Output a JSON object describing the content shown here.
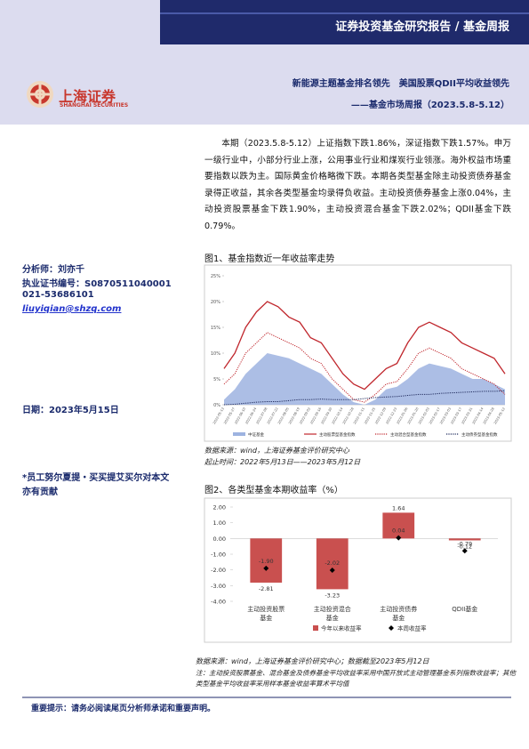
{
  "header": {
    "banner": "证券投资基金研究报告 / 基金周报",
    "logo": "上海证券",
    "logo_en": "SHANGHAI SECURITIES",
    "title": "新能源主题基金排名领先　美国股票QDII平均收益领先",
    "subtitle": "——基金市场周报（2023.5.8-5.12）"
  },
  "sidebar": {
    "analyst": "分析师：刘亦千",
    "cert": "执业证书编号：S0870511040001",
    "phone": "021-53686101",
    "email": "liuyiqian@shzq.com",
    "date": "日期：2023年5月15日",
    "note": "*员工努尔夏提・买买提艾买尔对本文亦有贡献"
  },
  "summary": "本期（2023.5.8-5.12）上证指数下跌1.86%，深证指数下跌1.57%。申万一级行业中，小部分行业上涨，公用事业行业和煤炭行业领涨。海外权益市场重要指数以跌为主。国际黄金价格略微下跌。本期各类型基金除主动投资债券基金录得正收益，其余各类型基金均录得负收益。主动投资债券基金上涨0.04%，主动投资股票基金下跌1.90%，主动投资混合基金下跌2.02%；QDII基金下跌0.79%。",
  "chart_data": [
    {
      "type": "line",
      "title": "图1、基金指数近一年收益率走势",
      "categories": [
        "2022-05-13",
        "2022-05-27",
        "2022-06-10",
        "2022-06-24",
        "2022-07-08",
        "2022-07-22",
        "2022-08-05",
        "2022-08-19",
        "2022-09-02",
        "2022-09-16",
        "2022-09-30",
        "2022-10-14",
        "2022-10-28",
        "2022-11-11",
        "2022-11-25",
        "2022-12-09",
        "2022-12-23",
        "2023-01-06",
        "2023-01-20",
        "2023-02-03",
        "2023-02-17",
        "2023-03-03",
        "2023-03-17",
        "2023-03-31",
        "2023-04-14",
        "2023-04-28",
        "2023-05-12"
      ],
      "series": [
        {
          "name": "中证基金",
          "color": "#9db3e0",
          "style": "area",
          "values": [
            1,
            3,
            6,
            8,
            10,
            9.5,
            9,
            8,
            7,
            6,
            4,
            2,
            0.5,
            0,
            1,
            3,
            3.5,
            5,
            7,
            8,
            7.5,
            7,
            6,
            5,
            5,
            4,
            3
          ]
        },
        {
          "name": "主动股票型基金指数",
          "color": "#c0272d",
          "style": "line",
          "values": [
            7,
            10,
            15,
            18,
            20,
            19,
            17,
            16,
            13,
            12,
            9,
            6,
            4,
            3,
            5,
            7,
            8,
            12,
            15,
            16,
            15,
            14,
            12,
            11,
            10,
            9,
            6
          ]
        },
        {
          "name": "主动混合型基金指数",
          "color": "#c0272d",
          "style": "dotted",
          "values": [
            4,
            6,
            10,
            12,
            14,
            13,
            12,
            11,
            9,
            8,
            5,
            3,
            1,
            0.5,
            2,
            4,
            4.5,
            7,
            10,
            11,
            10,
            9,
            7,
            6,
            5,
            4,
            2
          ]
        },
        {
          "name": "主动债券型基金指数",
          "color": "#1f2a5c",
          "style": "dotted",
          "values": [
            0,
            0.1,
            0.3,
            0.5,
            0.6,
            0.6,
            0.8,
            1,
            1,
            1.1,
            1,
            1,
            1,
            1.2,
            1.4,
            1.5,
            1.6,
            1.8,
            2,
            2,
            2.2,
            2.3,
            2.4,
            2.5,
            2.6,
            2.6,
            2.7
          ]
        }
      ],
      "ylim": [
        0,
        25
      ],
      "yticks": [
        {
          "value": 0,
          "label": "0%"
        },
        {
          "value": 5,
          "label": "5%"
        },
        {
          "value": 10,
          "label": "10%"
        },
        {
          "value": 15,
          "label": "15%"
        },
        {
          "value": 20,
          "label": "20%"
        },
        {
          "value": 25,
          "label": "25%"
        }
      ],
      "source": "数据来源：wind，上海证券基金评价研究中心",
      "period": "起止时间：2022年5月13日——2023年5月12日"
    },
    {
      "type": "bar",
      "title": "图2、各类型基金本期收益率（%）",
      "categories": [
        "主动投资股票基金",
        "主动投资混合基金",
        "主动投资债券基金",
        "QDII基金"
      ],
      "series": [
        {
          "name": "今年以来收益率",
          "color": "#c9504f",
          "values": [
            -2.81,
            -3.23,
            1.64,
            -0.12
          ],
          "value_labels": [
            "-2.81",
            "-3.23",
            "1.64",
            "-0.12"
          ]
        },
        {
          "name": "本周收益率",
          "color": "#000000",
          "marker": "diamond",
          "values": [
            -1.9,
            -2.02,
            0.04,
            -0.79
          ],
          "value_labels": [
            "-1.90",
            "-2.02",
            "0.04",
            "-0.79"
          ]
        }
      ],
      "ylim": [
        -4,
        2
      ],
      "yticks": [
        {
          "value": 2,
          "label": "2.00"
        },
        {
          "value": 1,
          "label": "1.00"
        },
        {
          "value": 0,
          "label": "0.00"
        },
        {
          "value": -1,
          "label": "-1.00"
        },
        {
          "value": -2,
          "label": "-2.00"
        },
        {
          "value": -3,
          "label": "-3.00"
        },
        {
          "value": -4,
          "label": "-4.00"
        }
      ],
      "source": "数据来源：wind，上海证券基金评价研究中心；数据截至2023年5月12日",
      "note": "注：主动投资股票基金、混合基金及债券基金平均收益率采用中国开放式主动管理基金系列指数收益率；其他类型基金平均收益率采用样本基金收益率算术平均值"
    }
  ],
  "footer": "重要提示：请务必阅读尾页分析师承诺和重要声明。"
}
